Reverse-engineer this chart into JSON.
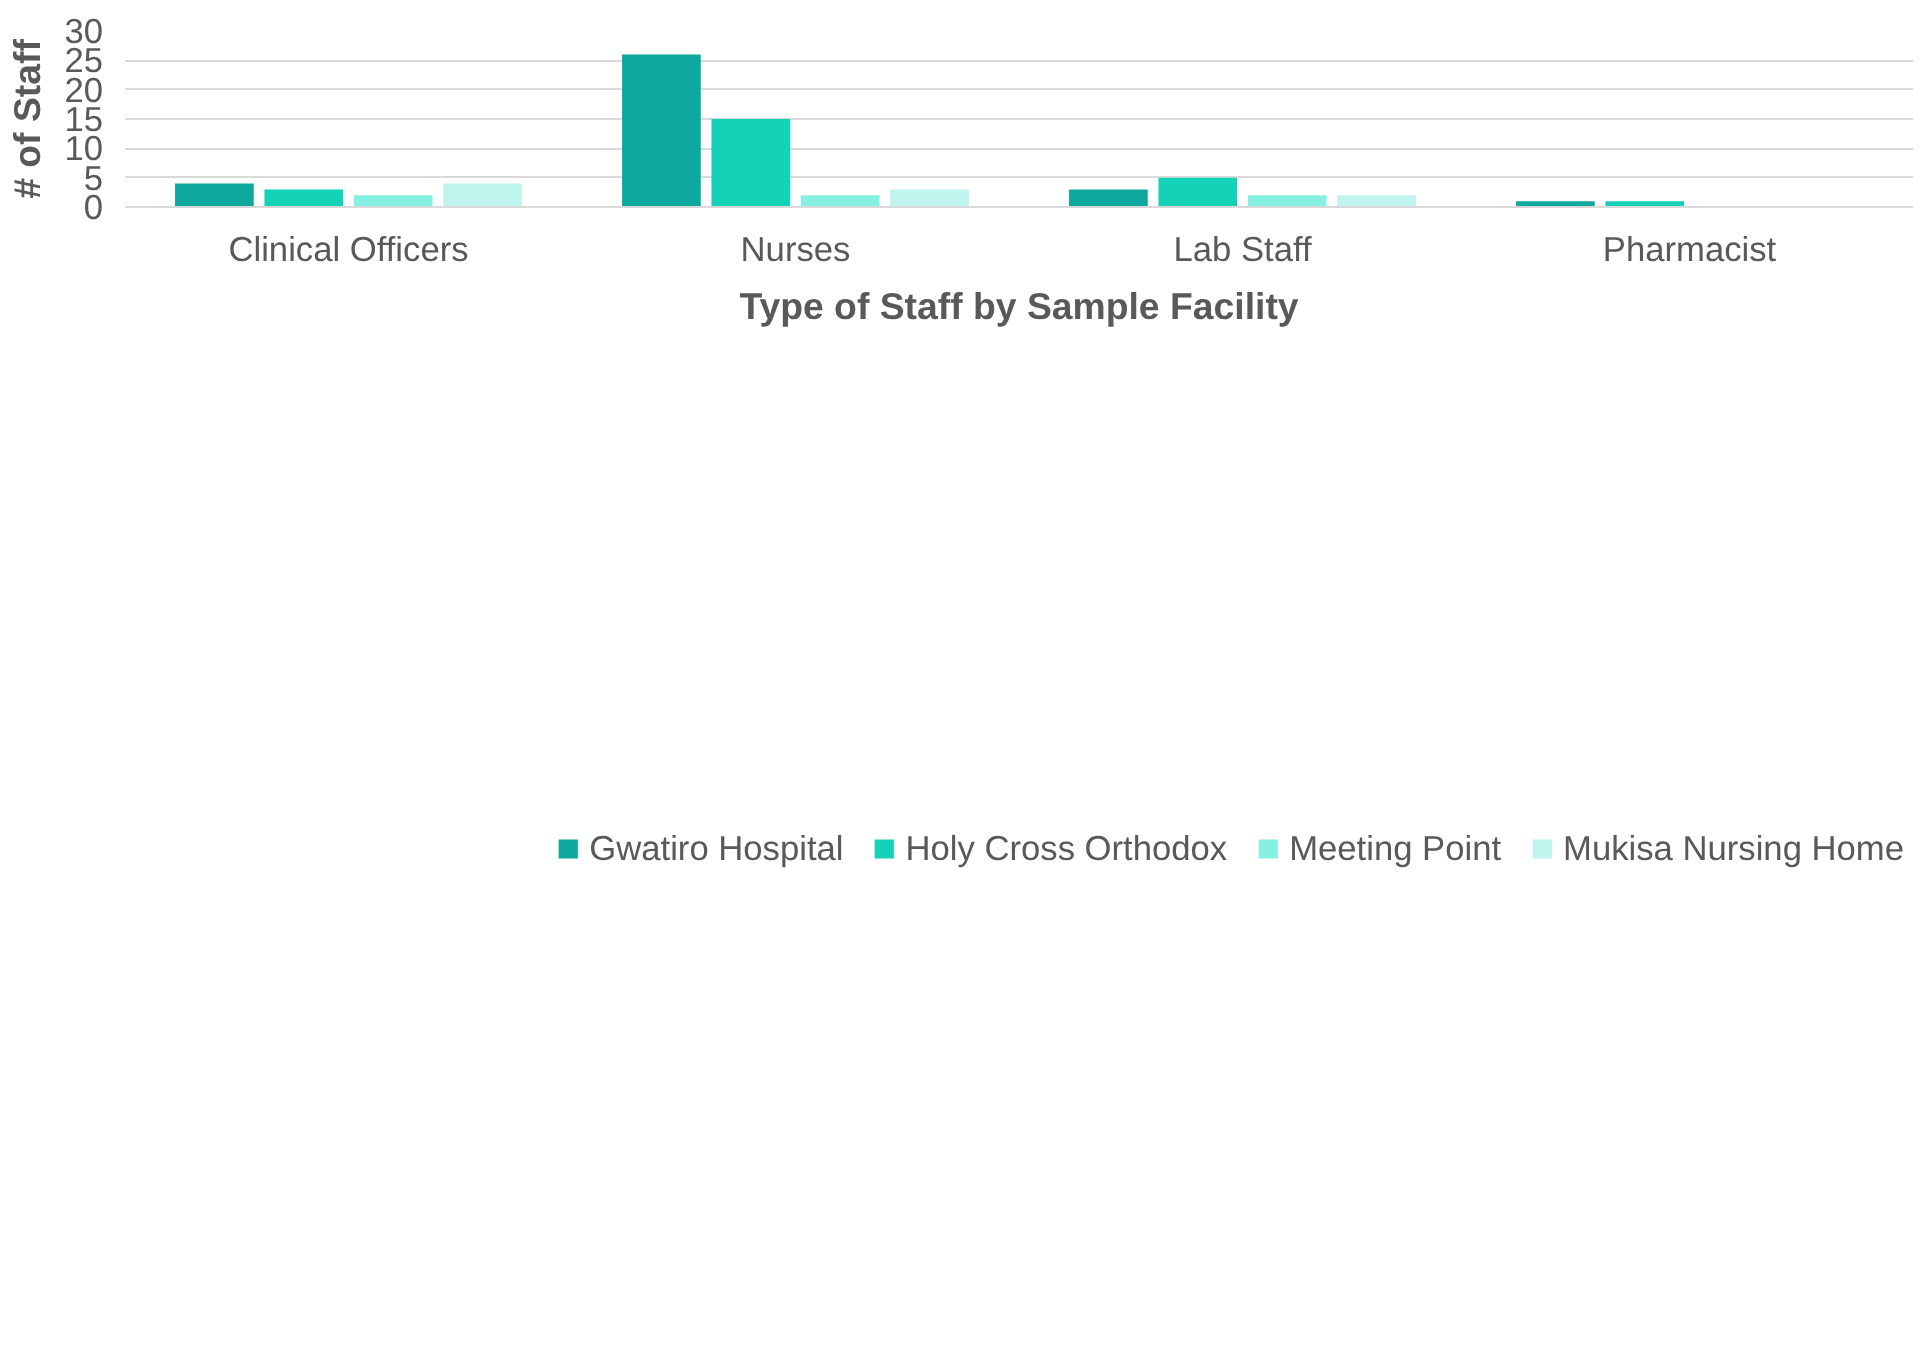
{
  "chart_data": {
    "type": "bar",
    "xlabel": "Type of Staff by Sample Facility",
    "ylabel": "# of Staff",
    "categories": [
      "Clinical Officers",
      "Nurses",
      "Lab Staff",
      "Pharmacist"
    ],
    "series": [
      {
        "name": "Gwatiro Hospital",
        "color": "#0fa89e",
        "values": [
          4,
          26,
          3,
          1
        ]
      },
      {
        "name": "Holy Cross Orthodox",
        "color": "#14d2b8",
        "values": [
          3,
          15,
          5,
          1
        ]
      },
      {
        "name": "Meeting Point",
        "color": "#86f0e2",
        "values": [
          2,
          2,
          2,
          0
        ]
      },
      {
        "name": "Mukisa Nursing Home",
        "color": "#bff5ee",
        "values": [
          4,
          3,
          2,
          0
        ]
      }
    ],
    "ylim": [
      0,
      30
    ],
    "yticks": [
      0,
      5,
      10,
      15,
      20,
      25,
      30
    ],
    "grid": "y",
    "legend": "bottom"
  }
}
